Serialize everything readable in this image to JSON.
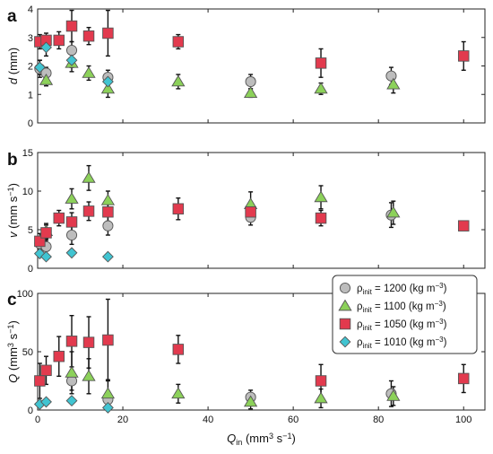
{
  "figure": {
    "panel_letters": [
      "a",
      "b",
      "c"
    ]
  },
  "styles": {
    "series_colors": {
      "rho1200": "#bdbdbd",
      "rho1100": "#8cd15a",
      "rho1050": "#e23a4e",
      "rho1010": "#41c4d1"
    },
    "edge_color": "#555555"
  },
  "legend": {
    "items": [
      {
        "key": "rho1200",
        "label": "ρinit = 1200 (kg m−3)",
        "marker": "circle"
      },
      {
        "key": "rho1100",
        "label": "ρinit = 1100 (kg m−3)",
        "marker": "triangle"
      },
      {
        "key": "rho1050",
        "label": "ρinit = 1050 (kg m−3)",
        "marker": "square"
      },
      {
        "key": "rho1010",
        "label": "ρinit = 1010 (kg m−3)",
        "marker": "diamond"
      }
    ]
  },
  "chart_data": [
    {
      "type": "scatter",
      "panel": "a",
      "ylabel": "d (mm)",
      "xlim": [
        0,
        105
      ],
      "ylim": [
        0,
        4
      ],
      "yticks": [
        0,
        1,
        2,
        3,
        4
      ],
      "xticks": [
        0,
        20,
        40,
        60,
        80,
        100
      ],
      "x_tick_labels_shown": false,
      "series": [
        {
          "key": "rho1200",
          "points": [
            [
              0.5,
              1.9,
              0.3
            ],
            [
              2,
              1.75,
              0.2
            ],
            [
              8,
              2.55,
              0.3
            ],
            [
              16.5,
              1.6,
              0.25
            ],
            [
              50,
              1.45,
              0.25
            ],
            [
              83,
              1.65,
              0.3
            ]
          ]
        },
        {
          "key": "rho1100",
          "points": [
            [
              2,
              1.5,
              0.2
            ],
            [
              8,
              2.1,
              0.3
            ],
            [
              12,
              1.75,
              0.25
            ],
            [
              16.5,
              1.2,
              0.3
            ],
            [
              33,
              1.45,
              0.25
            ],
            [
              50,
              1.05,
              0.15
            ],
            [
              66.5,
              1.2,
              0.2
            ],
            [
              83.5,
              1.35,
              0.3
            ]
          ]
        },
        {
          "key": "rho1050",
          "points": [
            [
              0.5,
              2.85,
              0.25
            ],
            [
              2,
              2.9,
              0.25
            ],
            [
              5,
              2.9,
              0.3
            ],
            [
              8,
              3.4,
              0.55
            ],
            [
              12,
              3.05,
              0.3
            ],
            [
              16.5,
              3.15,
              0.8
            ],
            [
              33,
              2.85,
              0.25
            ],
            [
              66.5,
              2.1,
              0.5
            ],
            [
              100,
              2.35,
              0.5
            ]
          ]
        },
        {
          "key": "rho1010",
          "points": [
            [
              0.5,
              1.95,
              0.25
            ],
            [
              2,
              2.65,
              0.3
            ],
            [
              8,
              2.2,
              0.25
            ],
            [
              16.5,
              1.45,
              0.25
            ]
          ]
        }
      ]
    },
    {
      "type": "scatter",
      "panel": "b",
      "ylabel": "v (mm s−1)",
      "xlim": [
        0,
        105
      ],
      "ylim": [
        0,
        15
      ],
      "yticks": [
        0,
        5,
        10,
        15
      ],
      "xticks": [
        0,
        20,
        40,
        60,
        80,
        100
      ],
      "x_tick_labels_shown": false,
      "series": [
        {
          "key": "rho1200",
          "points": [
            [
              0.5,
              3.2,
              0.8
            ],
            [
              2,
              2.8,
              1
            ],
            [
              8,
              4.3,
              1.2
            ],
            [
              16.5,
              5.5,
              1.2
            ],
            [
              50,
              6.6,
              1
            ],
            [
              83,
              6.9,
              1.6
            ]
          ]
        },
        {
          "key": "rho1100",
          "points": [
            [
              2,
              4.8,
              1
            ],
            [
              8,
              9,
              1.3
            ],
            [
              12,
              11.7,
              1.6
            ],
            [
              16.5,
              8.8,
              1.2
            ],
            [
              50,
              8.3,
              1.6
            ],
            [
              66.5,
              9.2,
              1.5
            ],
            [
              83.5,
              7.2,
              1.5
            ]
          ]
        },
        {
          "key": "rho1050",
          "points": [
            [
              0.5,
              3.5,
              1
            ],
            [
              2,
              4.6,
              1
            ],
            [
              5,
              6.5,
              1
            ],
            [
              8,
              6,
              1.2
            ],
            [
              12,
              7.4,
              1.2
            ],
            [
              16.5,
              7.3,
              1.2
            ],
            [
              33,
              7.7,
              1.4
            ],
            [
              50,
              7.3,
              1.2
            ],
            [
              66.5,
              6.5,
              1
            ],
            [
              100,
              5.5,
              0.5
            ]
          ]
        },
        {
          "key": "rho1010",
          "points": [
            [
              0.5,
              1.9,
              0
            ],
            [
              2,
              1.5,
              0
            ],
            [
              8,
              2,
              0
            ],
            [
              16.5,
              1.5,
              0
            ]
          ]
        }
      ]
    },
    {
      "type": "scatter",
      "panel": "c",
      "ylabel": "Q (mm3 s−1)",
      "xlabel": "Qin (mm3 s−1)",
      "xlim": [
        0,
        105
      ],
      "ylim": [
        0,
        100
      ],
      "yticks": [
        0,
        50,
        100
      ],
      "xticks": [
        0,
        20,
        40,
        60,
        80,
        100
      ],
      "x_tick_labels_shown": true,
      "series": [
        {
          "key": "rho1200",
          "points": [
            [
              8,
              25,
              8
            ],
            [
              16.5,
              9,
              6
            ],
            [
              50,
              11,
              6
            ],
            [
              83,
              14,
              11
            ]
          ]
        },
        {
          "key": "rho1100",
          "points": [
            [
              8,
              32,
              18
            ],
            [
              12,
              29,
              15
            ],
            [
              16.5,
              14,
              12
            ],
            [
              33,
              14,
              8
            ],
            [
              50,
              7,
              6
            ],
            [
              66.5,
              10,
              8
            ],
            [
              83.5,
              12,
              8
            ]
          ]
        },
        {
          "key": "rho1050",
          "points": [
            [
              0.5,
              25,
              15
            ],
            [
              2,
              34,
              12
            ],
            [
              5,
              46,
              17
            ],
            [
              8,
              59,
              22
            ],
            [
              12,
              58,
              22
            ],
            [
              16.5,
              60,
              35
            ],
            [
              33,
              52,
              12
            ],
            [
              66.5,
              25,
              14
            ],
            [
              100,
              27,
              12
            ]
          ]
        },
        {
          "key": "rho1010",
          "points": [
            [
              0.5,
              5,
              0
            ],
            [
              2,
              7,
              0
            ],
            [
              8,
              8,
              0
            ],
            [
              16.5,
              2,
              0
            ]
          ]
        }
      ]
    }
  ]
}
